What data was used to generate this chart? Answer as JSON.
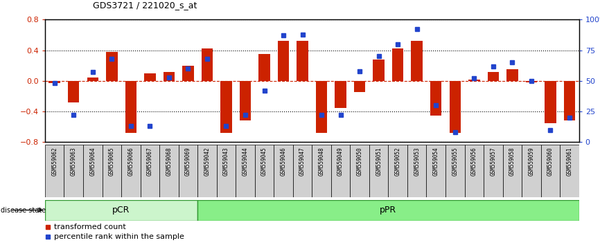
{
  "title": "GDS3721 / 221020_s_at",
  "samples": [
    "GSM559062",
    "GSM559063",
    "GSM559064",
    "GSM559065",
    "GSM559066",
    "GSM559067",
    "GSM559068",
    "GSM559069",
    "GSM559042",
    "GSM559043",
    "GSM559044",
    "GSM559045",
    "GSM559046",
    "GSM559047",
    "GSM559048",
    "GSM559049",
    "GSM559050",
    "GSM559051",
    "GSM559052",
    "GSM559053",
    "GSM559054",
    "GSM559055",
    "GSM559056",
    "GSM559057",
    "GSM559058",
    "GSM559059",
    "GSM559060",
    "GSM559061"
  ],
  "transformed_count": [
    -0.03,
    -0.28,
    0.04,
    0.38,
    -0.68,
    0.1,
    0.12,
    0.2,
    0.42,
    -0.68,
    -0.52,
    0.35,
    0.52,
    0.52,
    -0.68,
    -0.35,
    -0.15,
    0.28,
    0.42,
    0.52,
    -0.45,
    -0.68,
    0.02,
    0.12,
    0.15,
    -0.02,
    -0.55,
    -0.52
  ],
  "percentile_rank": [
    48,
    22,
    57,
    68,
    13,
    13,
    53,
    60,
    68,
    13,
    22,
    42,
    87,
    88,
    22,
    22,
    58,
    70,
    80,
    92,
    30,
    8,
    52,
    62,
    65,
    50,
    10,
    20
  ],
  "pcr_count": 8,
  "bar_color": "#cc2200",
  "dot_color": "#2244cc",
  "ylim_left": [
    -0.8,
    0.8
  ],
  "ylim_right": [
    0,
    100
  ],
  "yticks_left": [
    -0.8,
    -0.4,
    0.0,
    0.4,
    0.8
  ],
  "yticks_right": [
    0,
    25,
    50,
    75,
    100
  ],
  "background_color": "#ffffff",
  "pcr_color": "#ccf5cc",
  "ppr_color": "#88ee88",
  "legend_items": [
    "transformed count",
    "percentile rank within the sample"
  ]
}
